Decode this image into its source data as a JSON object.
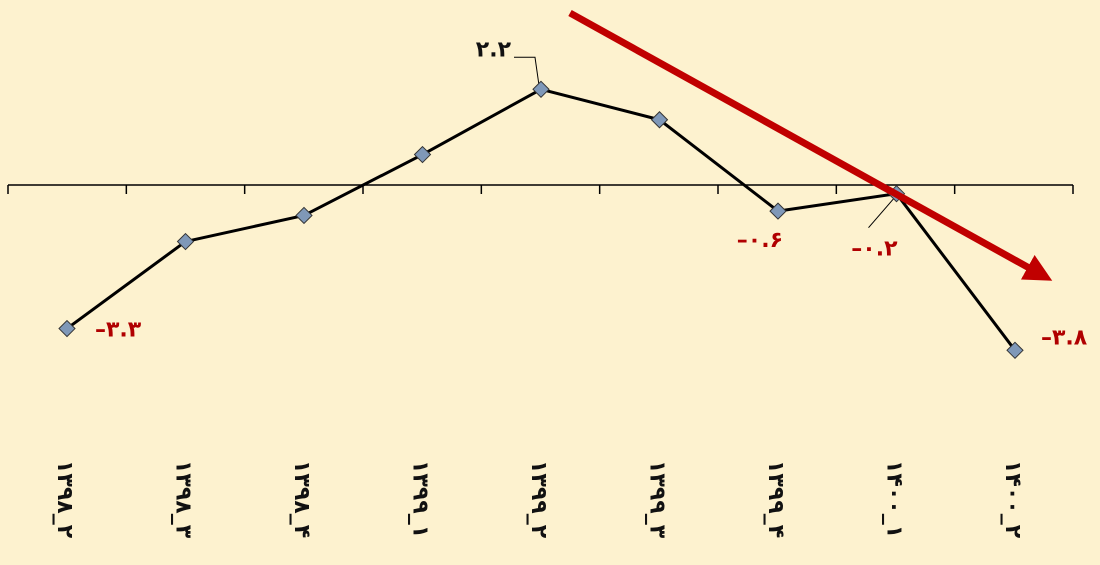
{
  "chart_data": {
    "type": "line",
    "title": "",
    "xlabel": "",
    "ylabel": "",
    "categories": [
      "۱۳۹۸_۲",
      "۱۳۹۸_۳",
      "۱۳۹۸_۴",
      "۱۳۹۹_۱",
      "۱۳۹۹_۲",
      "۱۳۹۹_۳",
      "۱۳۹۹_۴",
      "۱۴۰۰_۱",
      "۱۴۰۰_۲"
    ],
    "values": [
      -3.3,
      -1.3,
      -0.7,
      0.7,
      2.2,
      1.5,
      -0.6,
      -0.2,
      -3.8
    ],
    "ylim": [
      -4.2,
      2.8
    ],
    "grid": false,
    "annotations": [
      {
        "index": 0,
        "text": "–۳.۳",
        "color": "#b00000"
      },
      {
        "index": 4,
        "text": "۲.۲",
        "color": "#111111"
      },
      {
        "index": 6,
        "text": "–۰.۶",
        "color": "#b00000"
      },
      {
        "index": 7,
        "text": "–۰.۲",
        "color": "#b00000"
      },
      {
        "index": 8,
        "text": "–۳.۸",
        "color": "#b00000"
      }
    ],
    "trend_arrow": {
      "color": "#c00000",
      "direction": "down"
    },
    "colors": {
      "background": "#fdf2cf",
      "line": "#000000",
      "marker": "#7f98b8",
      "label_negative": "#b00000"
    }
  }
}
